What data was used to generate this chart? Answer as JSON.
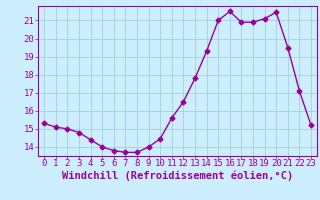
{
  "x": [
    0,
    1,
    2,
    3,
    4,
    5,
    6,
    7,
    8,
    9,
    10,
    11,
    12,
    13,
    14,
    15,
    16,
    17,
    18,
    19,
    20,
    21,
    22,
    23
  ],
  "y": [
    15.3,
    15.1,
    15.0,
    14.8,
    14.4,
    14.0,
    13.8,
    13.7,
    13.7,
    14.0,
    14.45,
    15.6,
    16.5,
    17.8,
    19.3,
    21.0,
    21.5,
    20.9,
    20.9,
    21.1,
    21.45,
    19.5,
    17.1,
    15.2
  ],
  "line_color": "#990099",
  "marker": "D",
  "marker_size": 2.5,
  "bg_color": "#cceeff",
  "grid_color": "#99cccc",
  "xlabel": "Windchill (Refroidissement éolien,°C)",
  "xlim": [
    -0.5,
    23.5
  ],
  "ylim": [
    13.5,
    21.8
  ],
  "yticks": [
    14,
    15,
    16,
    17,
    18,
    19,
    20,
    21
  ],
  "xticks": [
    0,
    1,
    2,
    3,
    4,
    5,
    6,
    7,
    8,
    9,
    10,
    11,
    12,
    13,
    14,
    15,
    16,
    17,
    18,
    19,
    20,
    21,
    22,
    23
  ],
  "axis_color": "#990099",
  "tick_color": "#990099",
  "label_color": "#990099",
  "font_size": 6.5,
  "xlabel_fontsize": 7.5
}
